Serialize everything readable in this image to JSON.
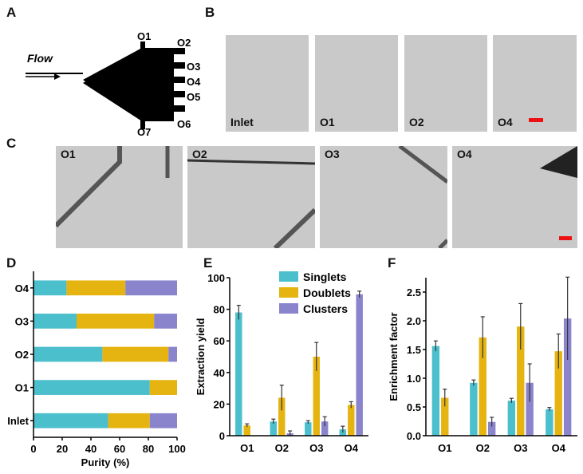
{
  "panels": {
    "a": "A",
    "b": "B",
    "c": "C",
    "d": "D",
    "e": "E",
    "f": "F"
  },
  "schematic": {
    "flow_label": "Flow",
    "outlets": [
      "O1",
      "O2",
      "O3",
      "O4",
      "O5",
      "O6",
      "O7"
    ]
  },
  "panel_b": {
    "images": [
      "Inlet",
      "O1",
      "O2",
      "O4"
    ]
  },
  "panel_c": {
    "images": [
      "O1",
      "O2",
      "O3",
      "O4"
    ]
  },
  "colors": {
    "singlets": "#4bbfcc",
    "doublets": "#e6b410",
    "clusters": "#8a84cc",
    "scalebar": "#ee1111"
  },
  "chart_data": [
    {
      "type": "bar",
      "orientation": "horizontal-stacked",
      "categories": [
        "O4",
        "O3",
        "O2",
        "O1",
        "Inlet"
      ],
      "series": [
        {
          "name": "Singlets",
          "values": [
            23,
            30,
            48,
            81,
            52
          ]
        },
        {
          "name": "Doublets",
          "values": [
            41,
            54,
            46,
            19,
            29
          ]
        },
        {
          "name": "Clusters",
          "values": [
            36,
            16,
            6,
            0,
            19
          ]
        }
      ],
      "xlabel": "Purity (%)",
      "xlim": [
        0,
        100
      ],
      "xticks": [
        0,
        20,
        40,
        60,
        80,
        100
      ]
    },
    {
      "type": "bar",
      "categories": [
        "O1",
        "O2",
        "O3",
        "O4"
      ],
      "series": [
        {
          "name": "Singlets",
          "values": [
            78,
            9,
            8.5,
            4
          ],
          "err": [
            4.5,
            1.5,
            1,
            2
          ]
        },
        {
          "name": "Doublets",
          "values": [
            6.5,
            24,
            50,
            19.5
          ],
          "err": [
            1,
            8,
            9,
            2
          ]
        },
        {
          "name": "Clusters",
          "values": [
            0,
            1.5,
            9,
            89.5
          ],
          "err": [
            0,
            1.5,
            3,
            2
          ]
        }
      ],
      "ylabel": "Extraction yield",
      "ylim": [
        0,
        100
      ],
      "yticks": [
        0,
        20,
        40,
        60,
        80,
        100
      ],
      "legend": "top-right"
    },
    {
      "type": "bar",
      "categories": [
        "O1",
        "O2",
        "O3",
        "O4"
      ],
      "series": [
        {
          "name": "Singlets",
          "values": [
            1.56,
            0.92,
            0.61,
            0.46
          ],
          "err": [
            0.09,
            0.05,
            0.04,
            0.03
          ]
        },
        {
          "name": "Doublets",
          "values": [
            0.66,
            1.71,
            1.9,
            1.47
          ],
          "err": [
            0.15,
            0.36,
            0.4,
            0.3
          ]
        },
        {
          "name": "Clusters",
          "values": [
            0,
            0.24,
            0.92,
            2.04
          ],
          "err": [
            0,
            0.08,
            0.33,
            0.72
          ]
        }
      ],
      "ylabel": "Enrichment factor",
      "ylim": [
        0,
        2.75
      ],
      "yticks": [
        "0.0",
        "0.5",
        "1.0",
        "1.5",
        "2.0",
        "2.5"
      ]
    }
  ]
}
